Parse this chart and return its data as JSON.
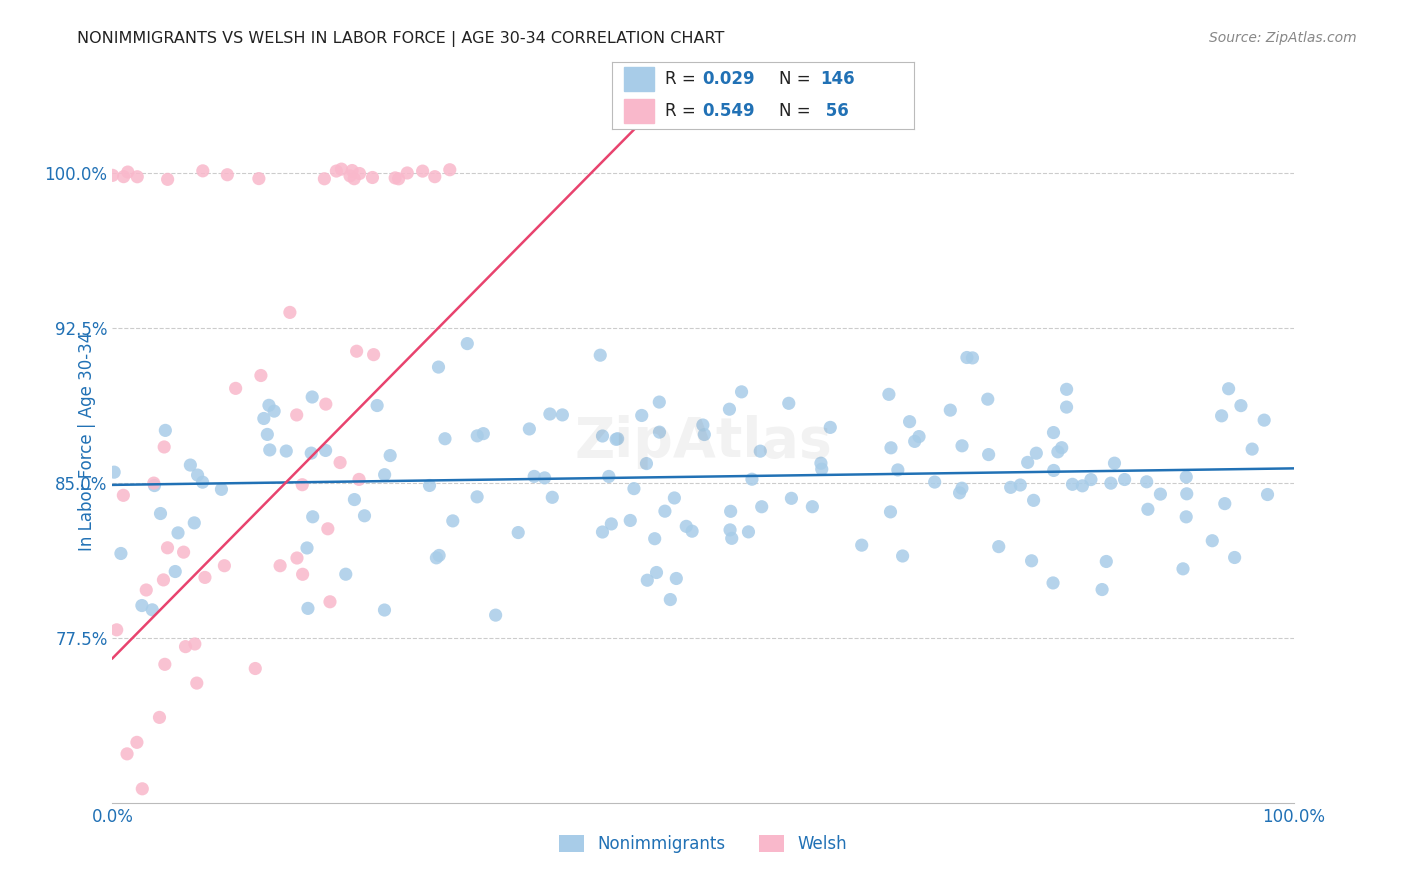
{
  "title": "NONIMMIGRANTS VS WELSH IN LABOR FORCE | AGE 30-34 CORRELATION CHART",
  "source": "Source: ZipAtlas.com",
  "ylabel": "In Labor Force | Age 30-34",
  "ytick_labels": [
    "77.5%",
    "85.0%",
    "92.5%",
    "100.0%"
  ],
  "ytick_values": [
    0.775,
    0.85,
    0.925,
    1.0
  ],
  "xlim": [
    0.0,
    1.0
  ],
  "ylim": [
    0.695,
    1.045
  ],
  "blue_color": "#a8cce8",
  "blue_line_color": "#2171b5",
  "pink_color": "#f9b8cb",
  "pink_line_color": "#e8436e",
  "legend_label_blue": "Nonimmigrants",
  "legend_label_pink": "Welsh",
  "R_blue": 0.029,
  "N_blue": 146,
  "R_pink": 0.549,
  "N_pink": 56,
  "background_color": "#ffffff",
  "grid_color": "#cccccc",
  "title_color": "#222222",
  "value_color": "#2171b5",
  "label_color": "#222222",
  "axis_tick_color": "#2171b5",
  "source_color": "#888888"
}
